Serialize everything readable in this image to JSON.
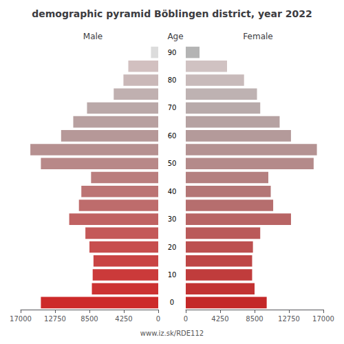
{
  "chart_data": {
    "type": "bar",
    "orientation": "horizontal",
    "title": "demographic pyramid Böblingen district, year 2022",
    "ylabel": "Age",
    "annotations": [
      "www.iz.sk/RDE112"
    ],
    "categories": [
      0,
      null,
      10,
      null,
      20,
      null,
      30,
      null,
      40,
      null,
      50,
      null,
      60,
      null,
      70,
      null,
      80,
      null,
      90
    ],
    "series": [
      {
        "name": "Male",
        "values": [
          14500,
          8200,
          8100,
          8000,
          8500,
          9000,
          11000,
          9800,
          9500,
          8300,
          14500,
          15800,
          12000,
          10500,
          8800,
          5500,
          4300,
          3700,
          900
        ],
        "colors": [
          "#cd2a2a",
          "#cc3232",
          "#cb3a3a",
          "#c94444",
          "#c74e4e",
          "#c45858",
          "#c06262",
          "#be6c6c",
          "#bc7474",
          "#ba7e7e",
          "#b88888",
          "#b69090",
          "#b69898",
          "#b8a0a0",
          "#baa8a8",
          "#c0b0b0",
          "#cab8b8",
          "#d2c0c0",
          "#dcdcdc"
        ]
      },
      {
        "name": "Female",
        "values": [
          10000,
          8500,
          8200,
          8200,
          8300,
          9200,
          13000,
          10800,
          10500,
          10200,
          15800,
          16200,
          13000,
          11600,
          9200,
          8800,
          7200,
          5100,
          1700
        ],
        "colors": [
          "#c42828",
          "#c23232",
          "#c03c3c",
          "#be4646",
          "#bc5050",
          "#ba5a5a",
          "#b86464",
          "#b66e6e",
          "#b47676",
          "#b48080",
          "#b48a8a",
          "#b49292",
          "#b49a9a",
          "#b6a2a2",
          "#b8aaaa",
          "#beb2b2",
          "#c8baba",
          "#d0c2c2",
          "#b4b4b4"
        ]
      }
    ],
    "xlim": [
      0,
      17000
    ],
    "xticks": [
      0,
      4250,
      8500,
      12750,
      17000
    ],
    "grid": false
  }
}
